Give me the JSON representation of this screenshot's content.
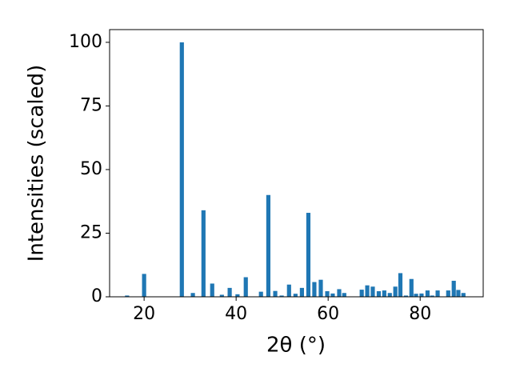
{
  "chart_data": {
    "type": "bar",
    "xlabel": "2θ (°)",
    "ylabel": "Intensities (scaled)",
    "x": [
      16.3,
      20.0,
      28.2,
      30.6,
      32.9,
      34.8,
      36.9,
      38.6,
      40.3,
      42.1,
      45.4,
      47.0,
      48.5,
      49.9,
      51.5,
      52.9,
      54.3,
      55.7,
      57.0,
      58.4,
      59.8,
      61.0,
      62.4,
      63.5,
      67.3,
      68.5,
      69.7,
      71.0,
      72.2,
      73.4,
      74.6,
      75.7,
      76.9,
      78.1,
      79.1,
      80.3,
      81.6,
      82.6,
      83.8,
      86.1,
      87.3,
      88.3,
      89.4
    ],
    "values": [
      0.5,
      9,
      100,
      1.5,
      34,
      5.2,
      0.8,
      3.5,
      1,
      7.7,
      2,
      40,
      2.3,
      0.5,
      4.8,
      1.2,
      3.5,
      33,
      5.8,
      6.7,
      2.2,
      1.3,
      3,
      1.5,
      2.8,
      4.5,
      4,
      2.2,
      2.5,
      1.5,
      4,
      9.3,
      0.5,
      7,
      1.2,
      1.3,
      2.5,
      0.5,
      2.5,
      2.5,
      6.3,
      2.7,
      1.5
    ],
    "color": "#1f77b4",
    "xlim": [
      12.5,
      93.7
    ],
    "xticks": [
      20,
      40,
      60,
      80
    ],
    "ylim": [
      0,
      105
    ],
    "yticks": [
      0,
      25,
      50,
      75,
      100
    ]
  }
}
